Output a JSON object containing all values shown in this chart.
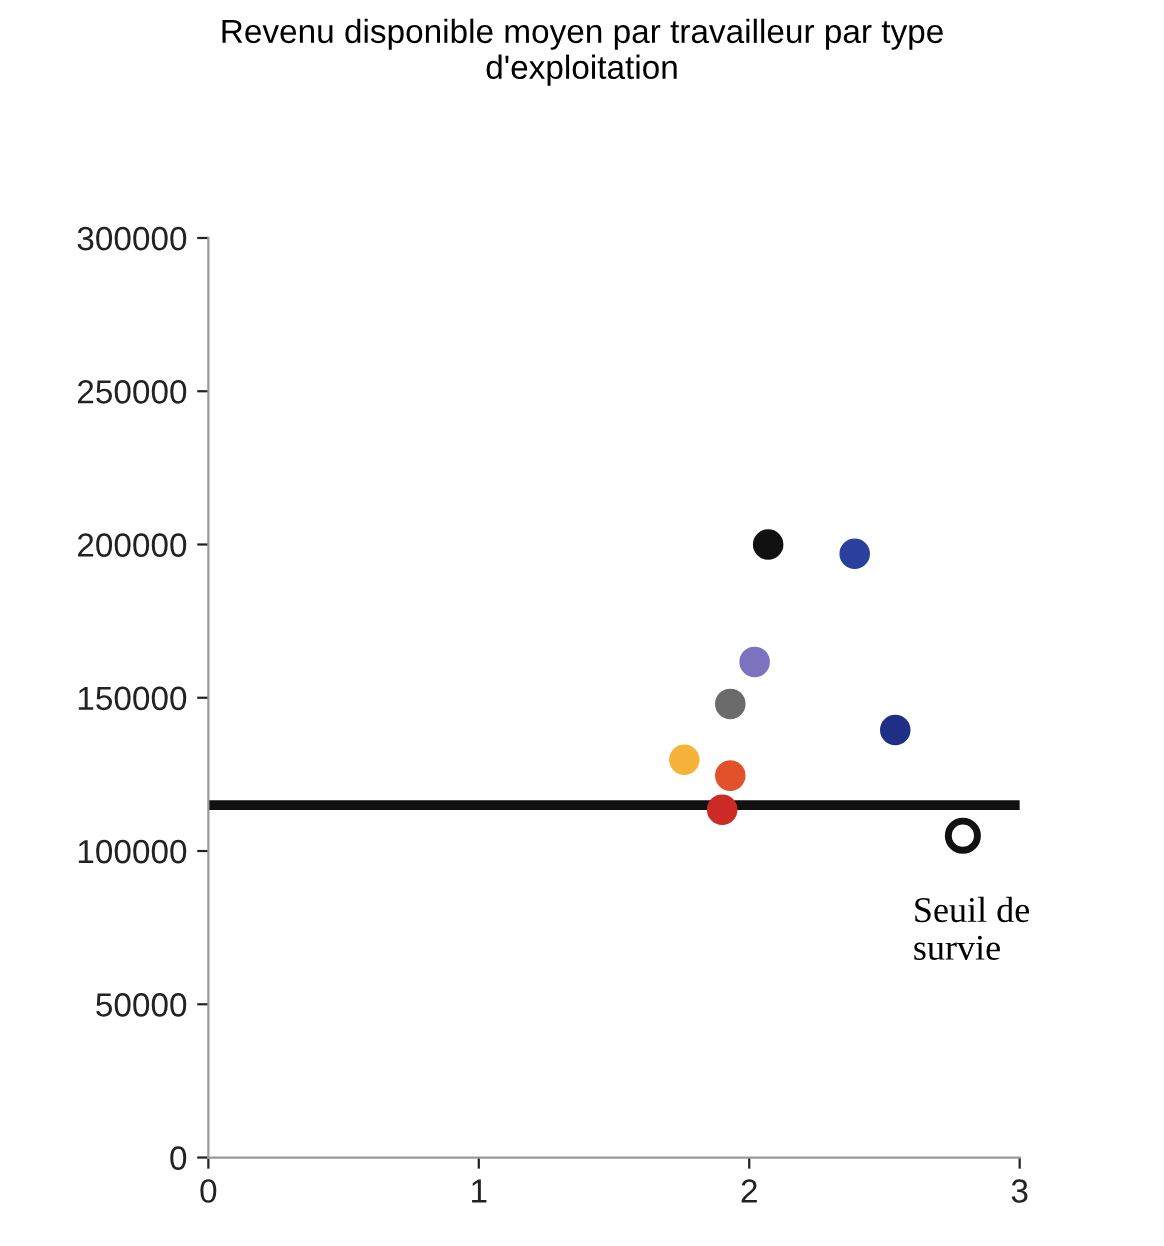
{
  "chart_data": {
    "type": "scatter",
    "title": "Revenu disponible moyen par travailleur par type\nd'exploitation",
    "xlim": [
      0,
      3
    ],
    "xticks": [
      0,
      1,
      2,
      3
    ],
    "ylim": [
      0,
      300000
    ],
    "yticks": [
      0,
      50000,
      100000,
      150000,
      200000,
      250000,
      300000
    ],
    "grid": false,
    "marker": "circle",
    "series": [
      {
        "x": [
          2.07,
          2.39,
          2.02,
          1.93,
          2.54,
          1.76,
          1.93,
          1.9
        ],
        "values": [
          200000,
          197000,
          161700,
          148000,
          139500,
          129800,
          124600,
          113500
        ],
        "colors": [
          "#111111",
          "#2b3f9e",
          "#7b72c0",
          "#6b6b6b",
          "#1f2f86",
          "#f7b23b",
          "#e2522a",
          "#cc2a25"
        ]
      },
      {
        "x": [
          2.79
        ],
        "values": [
          105000
        ],
        "color": "#ffffff"
      }
    ],
    "ref_lines": [
      {
        "axis": "y",
        "value": 115000,
        "color": "#111111",
        "line_style": "solid"
      }
    ],
    "annotations": [
      {
        "text": "Seuil de\nsurvie",
        "x": 2.79,
        "y": 105000
      }
    ]
  }
}
